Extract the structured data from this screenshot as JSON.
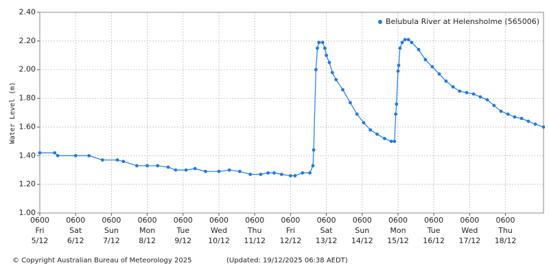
{
  "chart_data": {
    "type": "line",
    "y_label": "Water Level (m)",
    "legend": "top-right",
    "grid": true,
    "footer_left": "© Copyright Australian Bureau of Meteorology 2025",
    "footer_right": "(Updated: 19/12/2025 06:38 AEDT)",
    "xlim": [
      "5/12 0600",
      "19/12 0730"
    ],
    "ylim": [
      1,
      2.4
    ],
    "yticks": [
      {
        "value": 1,
        "label": "1.00"
      },
      {
        "value": 1.2,
        "label": "1.20"
      },
      {
        "value": 1.4,
        "label": "1.40"
      },
      {
        "value": 1.6,
        "label": "1.60"
      },
      {
        "value": 1.8,
        "label": "1.80"
      },
      {
        "value": 2,
        "label": "2.00"
      },
      {
        "value": 2.2,
        "label": "2.20"
      },
      {
        "value": 2.4,
        "label": "2.40"
      }
    ],
    "xticks": [
      {
        "value": "5/12 0600",
        "label": [
          "0600",
          "Fri",
          "5/12"
        ]
      },
      {
        "value": "6/12 0600",
        "label": [
          "0600",
          "Sat",
          "6/12"
        ]
      },
      {
        "value": "7/12 0600",
        "label": [
          "0600",
          "Sun",
          "7/12"
        ]
      },
      {
        "value": "8/12 0600",
        "label": [
          "0600",
          "Mon",
          "8/12"
        ]
      },
      {
        "value": "9/12 0600",
        "label": [
          "0600",
          "Tue",
          "9/12"
        ]
      },
      {
        "value": "10/12 0600",
        "label": [
          "0600",
          "Wed",
          "10/12"
        ]
      },
      {
        "value": "11/12 0600",
        "label": [
          "0600",
          "Thu",
          "11/12"
        ]
      },
      {
        "value": "12/12 0600",
        "label": [
          "0600",
          "Fri",
          "12/12"
        ]
      },
      {
        "value": "13/12 0600",
        "label": [
          "0600",
          "Sat",
          "13/12"
        ]
      },
      {
        "value": "14/12 0600",
        "label": [
          "0600",
          "Sun",
          "14/12"
        ]
      },
      {
        "value": "15/12 0600",
        "label": [
          "0600",
          "Mon",
          "15/12"
        ]
      },
      {
        "value": "16/12 0600",
        "label": [
          "0600",
          "Tue",
          "16/12"
        ]
      },
      {
        "value": "17/12 0600",
        "label": [
          "0600",
          "Wed",
          "17/12"
        ]
      },
      {
        "value": "18/12 0600",
        "label": [
          "0600",
          "Thu",
          "18/12"
        ]
      }
    ],
    "x": [
      "5/12 0600",
      "5/12 1600",
      "5/12 1800",
      "6/12 0600",
      "6/12 1500",
      "7/12 0000",
      "7/12 1000",
      "7/12 1400",
      "7/12 2300",
      "8/12 0600",
      "8/12 1300",
      "8/12 2000",
      "9/12 0100",
      "9/12 0800",
      "9/12 1400",
      "9/12 2100",
      "10/12 0600",
      "10/12 1300",
      "10/12 2000",
      "11/12 0300",
      "11/12 1000",
      "11/12 1500",
      "11/12 1900",
      "12/12 0000",
      "12/12 0600",
      "12/12 0900",
      "12/12 1400",
      "12/12 1900",
      "12/12 2100",
      "12/12 2130",
      "12/12 2300",
      "13/12 0000",
      "13/12 0100",
      "13/12 0330",
      "13/12 0500",
      "13/12 0600",
      "13/12 0800",
      "13/12 1000",
      "13/12 1230",
      "13/12 1700",
      "13/12 2200",
      "14/12 0230",
      "14/12 0700",
      "14/12 1130",
      "14/12 1600",
      "14/12 2100",
      "15/12 0130",
      "15/12 0340",
      "15/12 0430",
      "15/12 0500",
      "15/12 0600",
      "15/12 0630",
      "15/12 0720",
      "15/12 0850",
      "15/12 1040",
      "15/12 1300",
      "15/12 1510",
      "15/12 1950",
      "16/12 0020",
      "16/12 0500",
      "16/12 0940",
      "16/12 1410",
      "16/12 1850",
      "16/12 2320",
      "17/12 0400",
      "17/12 0840",
      "17/12 1310",
      "17/12 1750",
      "17/12 2220",
      "18/12 0300",
      "18/12 0740",
      "18/12 1210",
      "18/12 1650",
      "18/12 2120",
      "19/12 0200",
      "19/12 0730"
    ],
    "series": [
      {
        "name": "Belubula River at Helensholme (565006)",
        "color": "#1e78e6",
        "values": [
          1.42,
          1.42,
          1.4,
          1.4,
          1.4,
          1.37,
          1.37,
          1.36,
          1.33,
          1.33,
          1.33,
          1.32,
          1.3,
          1.3,
          1.31,
          1.29,
          1.29,
          1.3,
          1.29,
          1.27,
          1.27,
          1.28,
          1.28,
          1.27,
          1.26,
          1.26,
          1.28,
          1.28,
          1.33,
          1.44,
          2.0,
          2.15,
          2.19,
          2.19,
          2.15,
          2.1,
          2.05,
          1.98,
          1.93,
          1.86,
          1.77,
          1.69,
          1.63,
          1.58,
          1.55,
          1.52,
          1.5,
          1.5,
          1.69,
          1.76,
          1.99,
          2.03,
          2.15,
          2.19,
          2.21,
          2.21,
          2.19,
          2.14,
          2.07,
          2.02,
          1.97,
          1.92,
          1.88,
          1.85,
          1.84,
          1.83,
          1.81,
          1.79,
          1.75,
          1.71,
          1.69,
          1.67,
          1.66,
          1.64,
          1.62,
          1.6
        ]
      }
    ]
  }
}
